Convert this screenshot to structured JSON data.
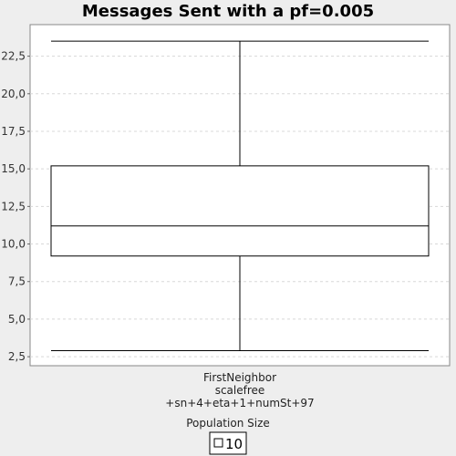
{
  "chart_data": {
    "type": "box",
    "title": "Messages Sent with a pf=0.005",
    "xlabel": "Population Size",
    "ylabel": "",
    "ylim": [
      1.9,
      24.6
    ],
    "yticks": [
      2.5,
      5.0,
      7.5,
      10.0,
      12.5,
      15.0,
      17.5,
      20.0,
      22.5
    ],
    "ytick_labels": [
      "2,5",
      "5,0",
      "7,5",
      "10,0",
      "12,5",
      "15,0",
      "17,5",
      "20,0",
      "22,5"
    ],
    "grid": true,
    "categories": [
      "FirstNeighbor\nscalefree\n+sn+4+eta+1+numSt+97"
    ],
    "series": [
      {
        "name": "10",
        "boxes": [
          {
            "min": 2.9,
            "q1": 9.2,
            "median": 11.2,
            "q3": 15.2,
            "max": 23.5
          }
        ]
      }
    ],
    "legend": {
      "position": "bottom",
      "entries": [
        "10"
      ]
    }
  }
}
